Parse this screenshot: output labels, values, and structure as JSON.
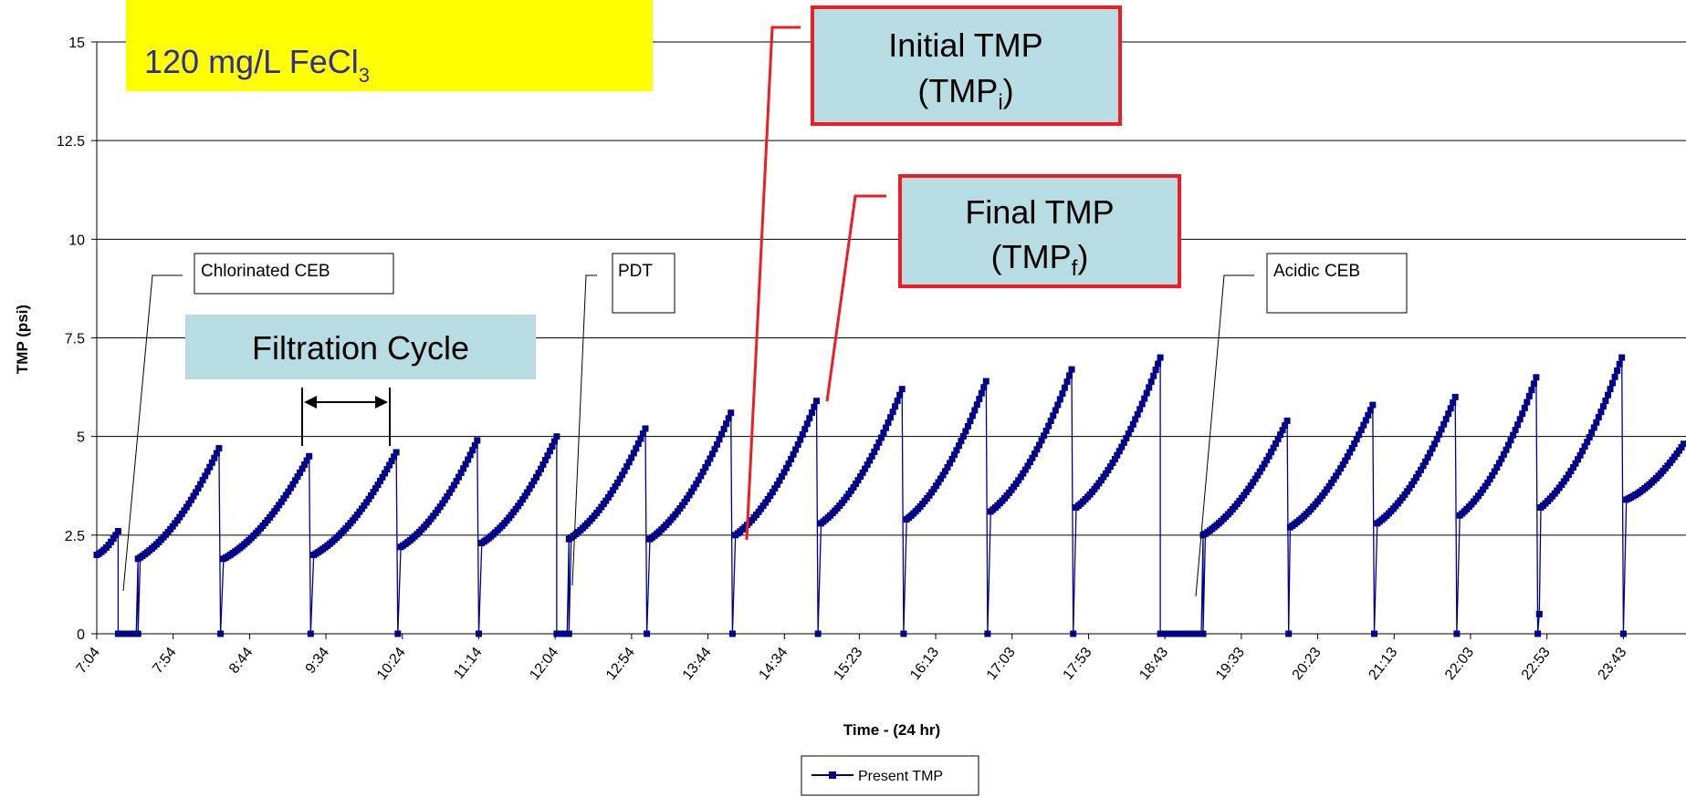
{
  "chart_data": {
    "type": "line",
    "xlabel": "Time - (24 hr)",
    "ylabel": "TMP (psi)",
    "ylim": [
      0,
      15
    ],
    "y_ticks": [
      "0",
      "2.5",
      "5",
      "7.5",
      "10",
      "12.5",
      "15"
    ],
    "x_ticks": [
      "7:04",
      "7:54",
      "8:44",
      "9:34",
      "10:24",
      "11:14",
      "12:04",
      "12:54",
      "13:44",
      "14:34",
      "15:23",
      "16:13",
      "17:03",
      "17:53",
      "18:43",
      "19:33",
      "20:23",
      "21:13",
      "22:03",
      "22:53",
      "23:43"
    ],
    "x_range_hours": [
      7.067,
      24.4
    ],
    "grid": "horizontal",
    "legend": "bottom-center",
    "series": [
      {
        "name": "Present TMP",
        "color": "#00008b",
        "cycles": [
          {
            "start": "7:04",
            "end": "7:18",
            "ti": 2.0,
            "tf": 2.6
          },
          {
            "start": "7:31",
            "end": "8:24",
            "ti": 1.9,
            "tf": 4.7
          },
          {
            "start": "8:27",
            "end": "9:23",
            "ti": 1.9,
            "tf": 4.5
          },
          {
            "start": "9:26",
            "end": "10:20",
            "ti": 2.0,
            "tf": 4.6
          },
          {
            "start": "10:23",
            "end": "11:13",
            "ti": 2.2,
            "tf": 4.9
          },
          {
            "start": "11:16",
            "end": "12:05",
            "ti": 2.3,
            "tf": 5.0
          },
          {
            "start": "12:13",
            "end": "13:03",
            "ti": 2.4,
            "tf": 5.2
          },
          {
            "start": "13:06",
            "end": "13:59",
            "ti": 2.4,
            "tf": 5.6
          },
          {
            "start": "14:02",
            "end": "14:55",
            "ti": 2.5,
            "tf": 5.9
          },
          {
            "start": "14:58",
            "end": "15:51",
            "ti": 2.8,
            "tf": 6.2
          },
          {
            "start": "15:54",
            "end": "16:46",
            "ti": 2.9,
            "tf": 6.4
          },
          {
            "start": "16:49",
            "end": "17:42",
            "ti": 3.1,
            "tf": 6.7
          },
          {
            "start": "17:45",
            "end": "18:40",
            "ti": 3.2,
            "tf": 7.0
          },
          {
            "start": "19:08",
            "end": "20:03",
            "ti": 2.5,
            "tf": 5.4
          },
          {
            "start": "20:05",
            "end": "20:59",
            "ti": 2.7,
            "tf": 5.8
          },
          {
            "start": "21:02",
            "end": "21:53",
            "ti": 2.8,
            "tf": 6.0
          },
          {
            "start": "21:56",
            "end": "22:46",
            "ti": 3.0,
            "tf": 6.5
          },
          {
            "start": "22:49",
            "end": "23:42",
            "ti": 3.2,
            "tf": 7.0
          },
          {
            "start": "23:45",
            "end": "24:24",
            "ti": 3.4,
            "tf": 4.9
          }
        ],
        "zero_intervals": [
          [
            "7:18",
            "7:31"
          ],
          [
            "12:05",
            "12:13"
          ],
          [
            "18:40",
            "19:08"
          ]
        ],
        "spikes": [
          {
            "time": "7:29",
            "value": 0
          },
          {
            "time": "8:25",
            "value": 0
          },
          {
            "time": "9:24",
            "value": 0
          },
          {
            "time": "10:21",
            "value": 0
          },
          {
            "time": "11:14",
            "value": 0
          },
          {
            "time": "13:04",
            "value": 0
          },
          {
            "time": "14:00",
            "value": 0
          },
          {
            "time": "14:56",
            "value": 0
          },
          {
            "time": "15:52",
            "value": 0
          },
          {
            "time": "16:47",
            "value": 0
          },
          {
            "time": "17:43",
            "value": 0
          },
          {
            "time": "20:04",
            "value": 0
          },
          {
            "time": "21:00",
            "value": 0
          },
          {
            "time": "21:54",
            "value": 0
          },
          {
            "time": "22:47",
            "value": 0
          },
          {
            "time": "23:43",
            "value": 0
          },
          {
            "time": "22:48",
            "value": 0.5
          }
        ]
      }
    ]
  },
  "annotations": {
    "condition_line": "120 mg/L FeCl",
    "condition_sub": "3",
    "chlorinated_ceb": "Chlorinated CEB",
    "pdt": "PDT",
    "acidic_ceb": "Acidic CEB",
    "filtration_cycle": "Filtration Cycle",
    "initial_tmp_line1": "Initial TMP",
    "initial_tmp_line2": "(TMP",
    "initial_tmp_sub": "i",
    "final_tmp_line1": "Final TMP",
    "final_tmp_line2": "(TMP",
    "final_tmp_sub": "f",
    "close_paren": ")"
  },
  "colors": {
    "series": "#00008b",
    "highlight_yellow": "#ffff00",
    "highlight_teal": "#b7dde3",
    "callout_red": "#ee1c24",
    "title_text": "#2e2c9e"
  }
}
